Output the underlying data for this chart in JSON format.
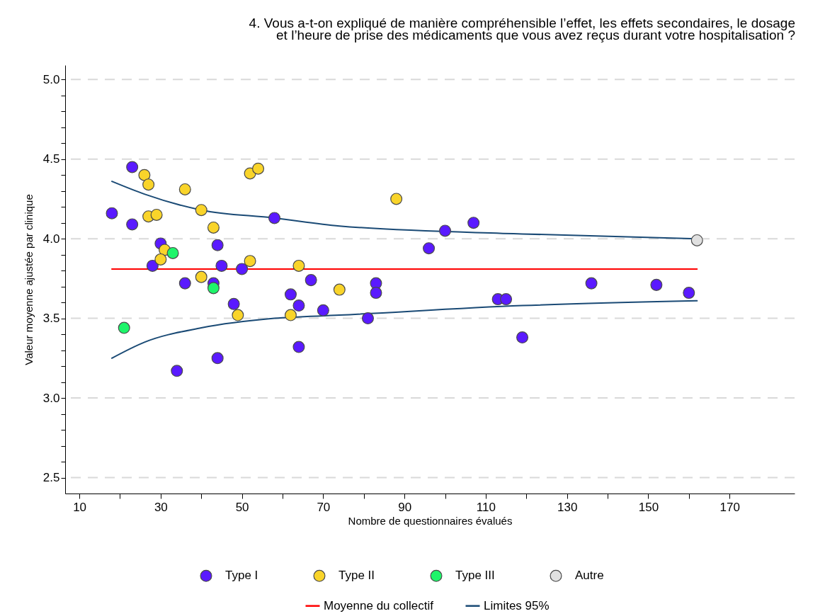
{
  "chart_data": {
    "type": "scatter",
    "title": [
      "4. Vous a-t-on expliqué de manière compréhensible l’effet, les effets secondaires, le dosage",
      "et l’heure de prise des médicaments que vous avez reçus durant votre hospitalisation ?"
    ],
    "xlabel": "Nombre de questionnaires évalués",
    "ylabel": "Valeur moyenne ajustée par clinique",
    "xlim": [
      6.5,
      186
    ],
    "ylim": [
      2.4,
      5.09
    ],
    "xticks": [
      10,
      {
        "value": 20,
        "label": null
      },
      30,
      {
        "value": 40,
        "label": null
      },
      50,
      {
        "value": 60,
        "label": null
      },
      70,
      {
        "value": 80,
        "label": null
      },
      90,
      {
        "value": 100,
        "label": null
      },
      110,
      {
        "value": 120,
        "label": null
      },
      130,
      {
        "value": 140,
        "label": null
      },
      150,
      {
        "value": 160,
        "label": null
      },
      170
    ],
    "yticks": [
      {
        "value": 2.5,
        "label": "2.5"
      },
      {
        "value": 2.6,
        "label": null
      },
      {
        "value": 2.7,
        "label": null
      },
      {
        "value": 2.8,
        "label": null
      },
      {
        "value": 2.9,
        "label": null
      },
      {
        "value": 3,
        "label": "3.0"
      },
      {
        "value": 3.1,
        "label": null
      },
      {
        "value": 3.2,
        "label": null
      },
      {
        "value": 3.3,
        "label": null
      },
      {
        "value": 3.4,
        "label": null
      },
      {
        "value": 3.5,
        "label": "3.5"
      },
      {
        "value": 3.6,
        "label": null
      },
      {
        "value": 3.7,
        "label": null
      },
      {
        "value": 3.8,
        "label": null
      },
      {
        "value": 3.9,
        "label": null
      },
      {
        "value": 4,
        "label": "4.0"
      },
      {
        "value": 4.1,
        "label": null
      },
      {
        "value": 4.2,
        "label": null
      },
      {
        "value": 4.3,
        "label": null
      },
      {
        "value": 4.4,
        "label": null
      },
      {
        "value": 4.5,
        "label": "4.5"
      },
      {
        "value": 4.6,
        "label": null
      },
      {
        "value": 4.7,
        "label": null
      },
      {
        "value": 4.8,
        "label": null
      },
      {
        "value": 4.9,
        "label": null
      },
      {
        "value": 5,
        "label": "5.0"
      }
    ],
    "grid": "y",
    "legend": "bottom",
    "series": [
      {
        "name": "Type I",
        "marker": "circle",
        "color": "#5a1aff",
        "x": [
          23,
          18,
          58,
          23,
          30,
          44,
          28,
          45,
          50,
          36,
          43,
          67,
          62,
          64,
          48,
          70,
          64,
          44,
          34,
          107,
          100,
          96,
          83,
          83,
          81,
          113,
          115,
          119,
          136,
          152,
          160
        ],
        "values": [
          4.45,
          4.16,
          4.13,
          4.09,
          3.97,
          3.96,
          3.83,
          3.83,
          3.81,
          3.72,
          3.72,
          3.74,
          3.65,
          3.58,
          3.59,
          3.55,
          3.32,
          3.25,
          3.17,
          4.1,
          4.05,
          3.94,
          3.72,
          3.66,
          3.5,
          3.62,
          3.62,
          3.38,
          3.72,
          3.71,
          3.66
        ]
      },
      {
        "name": "Type II",
        "marker": "circle",
        "color": "#f9d42a",
        "x": [
          26,
          27,
          36,
          52,
          54,
          27,
          29,
          40,
          43,
          31,
          30,
          52,
          64,
          40,
          49,
          62,
          74,
          88
        ],
        "values": [
          4.4,
          4.34,
          4.31,
          4.41,
          4.44,
          4.14,
          4.15,
          4.18,
          4.07,
          3.93,
          3.87,
          3.86,
          3.83,
          3.76,
          3.52,
          3.52,
          3.68,
          4.25
        ]
      },
      {
        "name": "Type III",
        "marker": "circle",
        "color": "#1ef56a",
        "x": [
          33,
          43,
          21
        ],
        "values": [
          3.91,
          3.69,
          3.44
        ]
      },
      {
        "name": "Autre",
        "marker": "circle",
        "color": "#e0e0e0",
        "x": [
          162
        ],
        "values": [
          3.99
        ]
      },
      {
        "name": "Moyenne du collectif",
        "type": "line",
        "marker": "none",
        "color": "#ff0000",
        "x": [
          18,
          162
        ],
        "values": [
          3.81,
          3.81
        ]
      },
      {
        "name": "Limites 95%",
        "type": "line",
        "marker": "none",
        "color": "#1a4a75",
        "x": [
          18,
          26,
          40,
          58,
          74,
          119,
          162
        ],
        "values": [
          4.36,
          4.28,
          4.18,
          4.13,
          4.08,
          4.03,
          4.0
        ]
      },
      {
        "type": "line",
        "marker": "none",
        "color": "#1a4a75",
        "x": [
          18,
          26,
          40,
          58,
          74,
          119,
          162
        ],
        "values": [
          3.25,
          3.35,
          3.44,
          3.5,
          3.52,
          3.58,
          3.61
        ]
      }
    ]
  }
}
